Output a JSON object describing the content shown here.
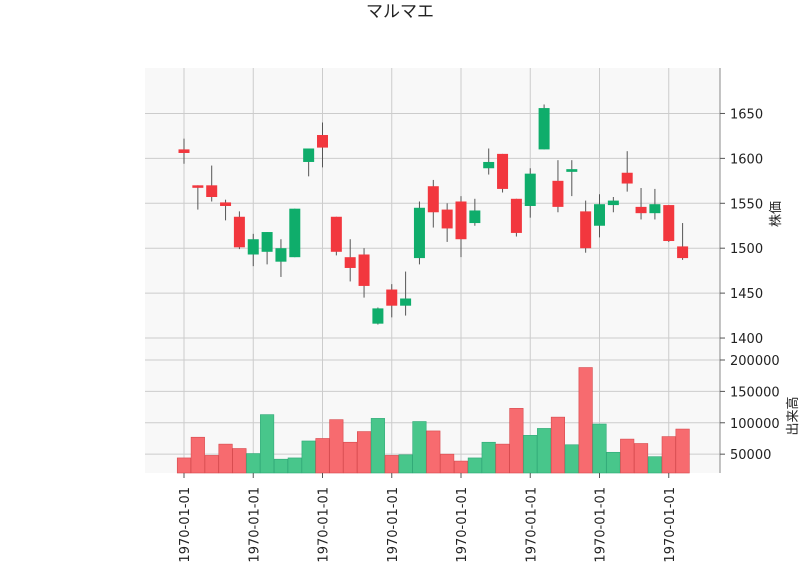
{
  "chart_data": {
    "type": "candlestick",
    "title": "マルマエ",
    "price_ylabel": "株価",
    "volume_ylabel": "出来高",
    "price_ylim": [
      1380,
      1675
    ],
    "price_ticks": [
      1400,
      1450,
      1500,
      1550,
      1600,
      1650
    ],
    "volume_ylim": [
      20000,
      210000
    ],
    "volume_ticks": [
      "50000",
      "100000",
      "150000",
      "200000"
    ],
    "volume_tick_values": [
      50000,
      100000,
      150000,
      200000
    ],
    "x_tick_labels": [
      "1970-01-01",
      "1970-01-01",
      "1970-01-01",
      "1970-01-01",
      "1970-01-01",
      "1970-01-01",
      "1970-01-01",
      "1970-01-01"
    ],
    "x_tick_indices": [
      0,
      5,
      10,
      15,
      20,
      25,
      30,
      35
    ],
    "colors": {
      "up": "#0fad6b",
      "down": "#f2373e",
      "up_volume": "#48c68b",
      "down_volume": "#f76b6f",
      "wick": "#555555",
      "plot_bg": "#f8f8f8",
      "grid": "#cccccc"
    },
    "grid": true,
    "candles": [
      {
        "open": 1610,
        "high": 1622,
        "low": 1594,
        "close": 1606
      },
      {
        "open": 1570,
        "high": 1570,
        "low": 1543,
        "close": 1568
      },
      {
        "open": 1570,
        "high": 1592,
        "low": 1552,
        "close": 1557
      },
      {
        "open": 1551,
        "high": 1554,
        "low": 1531,
        "close": 1547
      },
      {
        "open": 1535,
        "high": 1541,
        "low": 1499,
        "close": 1501
      },
      {
        "open": 1493,
        "high": 1516,
        "low": 1480,
        "close": 1510
      },
      {
        "open": 1496,
        "high": 1518,
        "low": 1482,
        "close": 1518
      },
      {
        "open": 1485,
        "high": 1510,
        "low": 1468,
        "close": 1500
      },
      {
        "open": 1490,
        "high": 1544,
        "low": 1490,
        "close": 1544
      },
      {
        "open": 1596,
        "high": 1611,
        "low": 1580,
        "close": 1611
      },
      {
        "open": 1626,
        "high": 1640,
        "low": 1590,
        "close": 1612
      },
      {
        "open": 1535,
        "high": 1535,
        "low": 1492,
        "close": 1496
      },
      {
        "open": 1490,
        "high": 1510,
        "low": 1463,
        "close": 1478
      },
      {
        "open": 1493,
        "high": 1500,
        "low": 1445,
        "close": 1458
      },
      {
        "open": 1416,
        "high": 1434,
        "low": 1415,
        "close": 1433
      },
      {
        "open": 1454,
        "high": 1460,
        "low": 1423,
        "close": 1436
      },
      {
        "open": 1436,
        "high": 1474,
        "low": 1425,
        "close": 1444
      },
      {
        "open": 1489,
        "high": 1552,
        "low": 1482,
        "close": 1545
      },
      {
        "open": 1569,
        "high": 1576,
        "low": 1523,
        "close": 1540
      },
      {
        "open": 1543,
        "high": 1550,
        "low": 1507,
        "close": 1522
      },
      {
        "open": 1552,
        "high": 1558,
        "low": 1490,
        "close": 1510
      },
      {
        "open": 1528,
        "high": 1555,
        "low": 1525,
        "close": 1542
      },
      {
        "open": 1589,
        "high": 1611,
        "low": 1582,
        "close": 1596
      },
      {
        "open": 1605,
        "high": 1605,
        "low": 1562,
        "close": 1566
      },
      {
        "open": 1555,
        "high": 1555,
        "low": 1513,
        "close": 1517
      },
      {
        "open": 1547,
        "high": 1589,
        "low": 1534,
        "close": 1583
      },
      {
        "open": 1610,
        "high": 1660,
        "low": 1610,
        "close": 1656
      },
      {
        "open": 1575,
        "high": 1598,
        "low": 1540,
        "close": 1546
      },
      {
        "open": 1585,
        "high": 1598,
        "low": 1558,
        "close": 1588
      },
      {
        "open": 1541,
        "high": 1553,
        "low": 1495,
        "close": 1500
      },
      {
        "open": 1525,
        "high": 1560,
        "low": 1512,
        "close": 1549
      },
      {
        "open": 1548,
        "high": 1557,
        "low": 1540,
        "close": 1553
      },
      {
        "open": 1584,
        "high": 1608,
        "low": 1563,
        "close": 1572
      },
      {
        "open": 1546,
        "high": 1567,
        "low": 1532,
        "close": 1539
      },
      {
        "open": 1539,
        "high": 1566,
        "low": 1532,
        "close": 1549
      },
      {
        "open": 1548,
        "high": 1548,
        "low": 1507,
        "close": 1508
      },
      {
        "open": 1502,
        "high": 1528,
        "low": 1487,
        "close": 1489
      }
    ],
    "volume": [
      44000,
      77000,
      48000,
      66000,
      59000,
      51000,
      113000,
      42000,
      44000,
      71000,
      75000,
      105000,
      69000,
      86000,
      107000,
      48000,
      49000,
      102000,
      87000,
      50000,
      39000,
      44000,
      69000,
      66000,
      123000,
      80000,
      91000,
      109000,
      65000,
      188000,
      98000,
      53000,
      74000,
      67000,
      46000,
      78000,
      90000
    ]
  }
}
